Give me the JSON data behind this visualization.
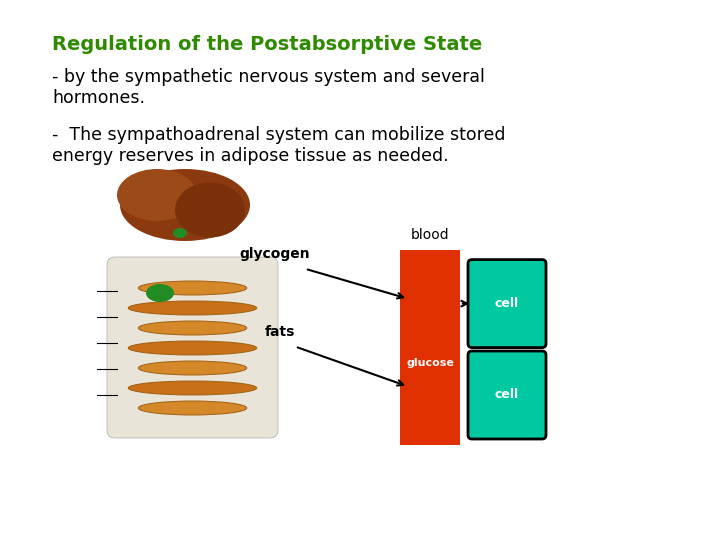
{
  "title": "Regulation of the Postabsorptive State",
  "title_color": "#2e8b00",
  "title_fontsize": 14,
  "line1_part1": "- by the sympathetic nervous system and several",
  "line1_part2": "hormones.",
  "line2_part1": "-  The sympathoadrenal system can mobilize stored",
  "line2_part2": "energy reserves in adipose tissue as needed.",
  "text_color": "#000000",
  "text_fontsize": 12.5,
  "bg_color": "#ffffff",
  "blood_label": "blood",
  "glucose_label": "glucose",
  "glycogen_label": "glycogen",
  "fats_label": "fats",
  "cell_label": "cell",
  "blood_color": "#e03000",
  "cell_color": "#00c8a0",
  "diagram_label_fontsize": 10
}
